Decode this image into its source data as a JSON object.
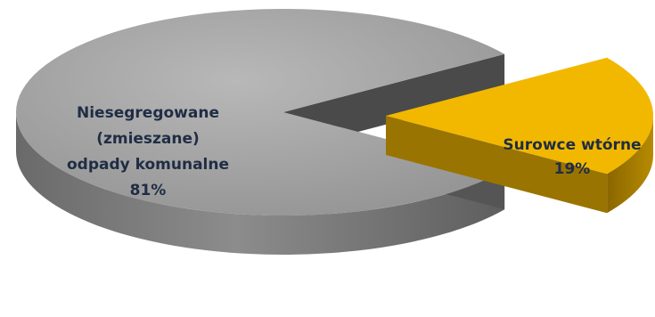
{
  "chart_data": {
    "type": "pie",
    "title": "",
    "slices": [
      {
        "label_lines": [
          "Niesegregowane",
          "(zmieszane)",
          "odpady komunalne"
        ],
        "value": 81,
        "value_label": "81%",
        "color": "#a6a6a6",
        "side_color": "#6e6e6e",
        "inner_color": "#4a4a4a",
        "exploded": false
      },
      {
        "label_lines": [
          "Surowce wtórne"
        ],
        "value": 19,
        "value_label": "19%",
        "color": "#f2b800",
        "side_color": "#9a7400",
        "inner_color": "#7a5c00",
        "exploded": true
      }
    ],
    "label_color": "#1f2d44"
  }
}
